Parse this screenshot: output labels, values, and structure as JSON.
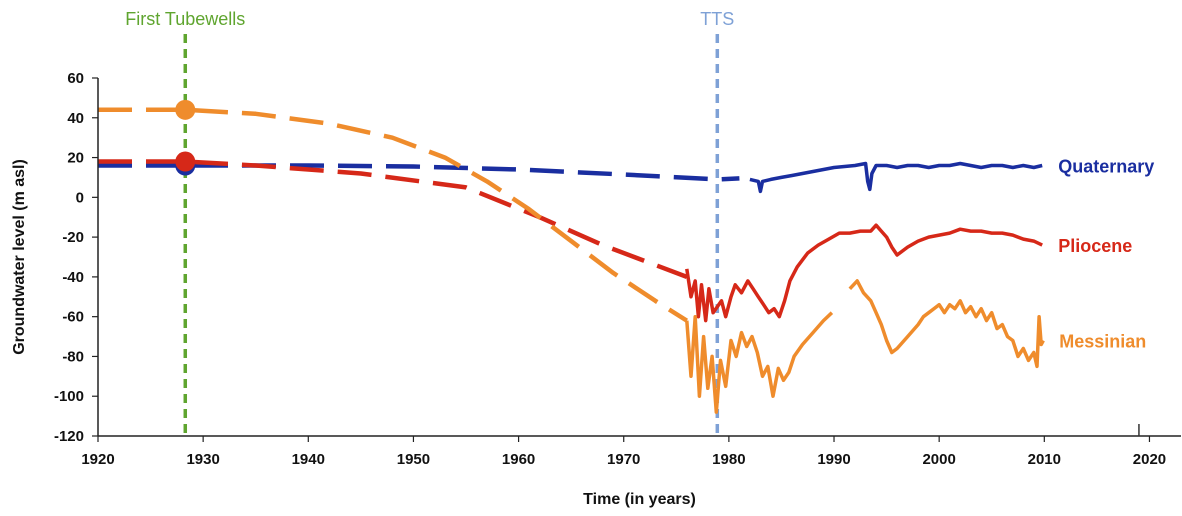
{
  "chart_data": {
    "type": "line",
    "xlabel": "Time (in years)",
    "ylabel": "Groundwater level (m asl)",
    "xlim": [
      1920,
      2023
    ],
    "ylim": [
      -120,
      60
    ],
    "xticks": [
      1920,
      1930,
      1940,
      1950,
      1960,
      1970,
      1980,
      1990,
      2000,
      2010,
      2020
    ],
    "yticks": [
      60,
      40,
      20,
      0,
      -20,
      -40,
      -60,
      -80,
      -100,
      -120
    ],
    "grid": false,
    "vlines": [
      {
        "label": "First Tubewells",
        "x": 1928.3,
        "color": "#5fa52f"
      },
      {
        "label": "TTS",
        "x": 1978.9,
        "color": "#7ea1d6"
      }
    ],
    "series": [
      {
        "name": "Quaternary",
        "color": "#1a2ea0",
        "estimated": [
          [
            1920,
            16
          ],
          [
            1928.3,
            16
          ],
          [
            1940,
            16
          ],
          [
            1950,
            15.5
          ],
          [
            1960,
            14
          ],
          [
            1970,
            11.5
          ],
          [
            1979,
            9
          ],
          [
            1981,
            9.5
          ]
        ],
        "measured": [
          [
            1982,
            9
          ],
          [
            1982.8,
            8
          ],
          [
            1983,
            3
          ],
          [
            1983.2,
            8
          ],
          [
            1984,
            9
          ],
          [
            1985,
            10
          ],
          [
            1986,
            11
          ],
          [
            1987,
            12
          ],
          [
            1988,
            13
          ],
          [
            1989,
            14
          ],
          [
            1990,
            15
          ],
          [
            1991,
            15.5
          ],
          [
            1992,
            16
          ],
          [
            1993,
            17
          ],
          [
            1993.2,
            8
          ],
          [
            1993.4,
            4
          ],
          [
            1993.6,
            12
          ],
          [
            1994,
            16
          ],
          [
            1995,
            16
          ],
          [
            1996,
            15
          ],
          [
            1997,
            16
          ],
          [
            1998,
            16
          ],
          [
            1999,
            15
          ],
          [
            2000,
            16
          ],
          [
            2001,
            16
          ],
          [
            2002,
            17
          ],
          [
            2003,
            16
          ],
          [
            2004,
            15
          ],
          [
            2005,
            16
          ],
          [
            2006,
            16
          ],
          [
            2007,
            15
          ],
          [
            2008,
            16
          ],
          [
            2009,
            15
          ],
          [
            2009.8,
            16
          ]
        ],
        "marker": [
          1928.3,
          16
        ]
      },
      {
        "name": "Pliocene",
        "color": "#d62818",
        "estimated": [
          [
            1920,
            18
          ],
          [
            1928.3,
            18
          ],
          [
            1935,
            16
          ],
          [
            1945,
            12
          ],
          [
            1955,
            5
          ],
          [
            1962,
            -10
          ],
          [
            1968,
            -24
          ],
          [
            1972,
            -32
          ],
          [
            1976,
            -40
          ]
        ],
        "measured": [
          [
            1976,
            -36
          ],
          [
            1976.4,
            -50
          ],
          [
            1976.8,
            -42
          ],
          [
            1977.1,
            -60
          ],
          [
            1977.4,
            -44
          ],
          [
            1977.8,
            -62
          ],
          [
            1978.1,
            -46
          ],
          [
            1978.5,
            -58
          ],
          [
            1978.9,
            -55
          ],
          [
            1979.3,
            -52
          ],
          [
            1979.7,
            -60
          ],
          [
            1980.2,
            -50
          ],
          [
            1980.6,
            -44
          ],
          [
            1981.2,
            -48
          ],
          [
            1981.8,
            -42
          ],
          [
            1982.3,
            -46
          ],
          [
            1982.8,
            -50
          ],
          [
            1983.3,
            -54
          ],
          [
            1983.8,
            -58
          ],
          [
            1984.3,
            -56
          ],
          [
            1984.8,
            -60
          ],
          [
            1985.3,
            -52
          ],
          [
            1985.8,
            -42
          ],
          [
            1986.5,
            -35
          ],
          [
            1987.5,
            -28
          ],
          [
            1988.5,
            -24
          ],
          [
            1989.5,
            -21
          ],
          [
            1990.5,
            -18
          ],
          [
            1991.5,
            -18
          ],
          [
            1992.5,
            -17
          ],
          [
            1993.5,
            -17
          ],
          [
            1994,
            -14
          ],
          [
            1994.5,
            -17
          ],
          [
            1995,
            -20
          ],
          [
            1995.5,
            -25
          ],
          [
            1996,
            -29
          ],
          [
            1997,
            -25
          ],
          [
            1998,
            -22
          ],
          [
            1999,
            -20
          ],
          [
            2000,
            -19
          ],
          [
            2001,
            -18
          ],
          [
            2002,
            -16
          ],
          [
            2003,
            -17
          ],
          [
            2004,
            -17
          ],
          [
            2005,
            -18
          ],
          [
            2006,
            -18
          ],
          [
            2007,
            -19
          ],
          [
            2008,
            -21
          ],
          [
            2009,
            -22
          ],
          [
            2009.8,
            -24
          ]
        ],
        "marker": [
          1928.3,
          18
        ]
      },
      {
        "name": "Messinian",
        "color": "#ef8c2c",
        "estimated": [
          [
            1920,
            44
          ],
          [
            1928.3,
            44
          ],
          [
            1935,
            42
          ],
          [
            1942,
            37
          ],
          [
            1948,
            30
          ],
          [
            1953,
            20
          ],
          [
            1957,
            8
          ],
          [
            1961,
            -6
          ],
          [
            1965,
            -22
          ],
          [
            1969,
            -38
          ],
          [
            1973,
            -52
          ],
          [
            1976,
            -62
          ]
        ],
        "measured": [
          [
            1976,
            -62
          ],
          [
            1976.4,
            -90
          ],
          [
            1976.8,
            -60
          ],
          [
            1977.2,
            -100
          ],
          [
            1977.6,
            -70
          ],
          [
            1978,
            -96
          ],
          [
            1978.4,
            -80
          ],
          [
            1978.8,
            -108
          ],
          [
            1979.2,
            -82
          ],
          [
            1979.7,
            -95
          ],
          [
            1980.2,
            -72
          ],
          [
            1980.7,
            -80
          ],
          [
            1981.2,
            -68
          ],
          [
            1981.7,
            -75
          ],
          [
            1982.2,
            -70
          ],
          [
            1982.7,
            -78
          ],
          [
            1983.2,
            -90
          ],
          [
            1983.7,
            -85
          ],
          [
            1984.2,
            -100
          ],
          [
            1984.7,
            -86
          ],
          [
            1985.2,
            -92
          ],
          [
            1985.7,
            -88
          ],
          [
            1986.2,
            -80
          ],
          [
            1987,
            -74
          ],
          [
            1988,
            -68
          ],
          [
            1989,
            -62
          ],
          [
            1989.8,
            -58
          ]
        ],
        "measured2": [
          [
            1991.5,
            -46
          ],
          [
            1992.2,
            -42
          ],
          [
            1992.8,
            -48
          ],
          [
            1993.5,
            -52
          ],
          [
            1994,
            -58
          ],
          [
            1994.5,
            -64
          ],
          [
            1995,
            -72
          ],
          [
            1995.5,
            -78
          ],
          [
            1996,
            -76
          ],
          [
            1997,
            -70
          ],
          [
            1998,
            -64
          ],
          [
            1998.5,
            -60
          ],
          [
            1999,
            -58
          ],
          [
            1999.5,
            -56
          ],
          [
            2000,
            -54
          ],
          [
            2000.5,
            -58
          ],
          [
            2001,
            -54
          ],
          [
            2001.5,
            -56
          ],
          [
            2002,
            -52
          ],
          [
            2002.5,
            -58
          ],
          [
            2003,
            -55
          ],
          [
            2003.5,
            -60
          ],
          [
            2004,
            -56
          ],
          [
            2004.5,
            -62
          ],
          [
            2005,
            -58
          ],
          [
            2005.5,
            -66
          ],
          [
            2006,
            -64
          ],
          [
            2006.5,
            -70
          ],
          [
            2007,
            -72
          ],
          [
            2007.5,
            -80
          ],
          [
            2008,
            -76
          ],
          [
            2008.5,
            -82
          ],
          [
            2009,
            -78
          ],
          [
            2009.3,
            -85
          ],
          [
            2009.5,
            -60
          ],
          [
            2009.7,
            -74
          ],
          [
            2009.9,
            -72
          ]
        ],
        "marker": [
          1928.3,
          44
        ]
      }
    ]
  }
}
